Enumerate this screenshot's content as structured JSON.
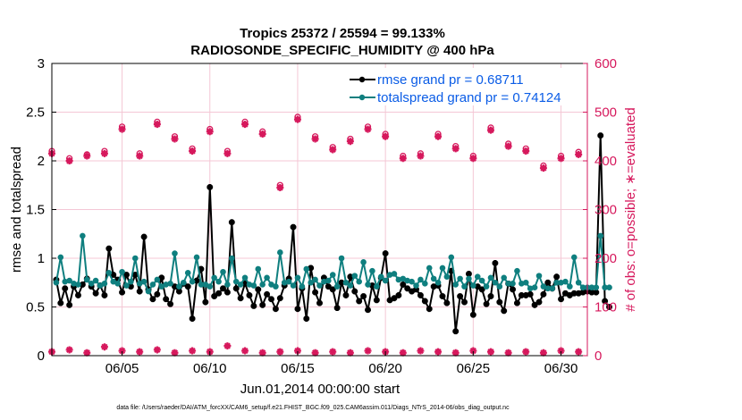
{
  "chart_data": {
    "type": "line",
    "title_line1": "Tropics 25372 / 25594 = 99.133%",
    "title_line2": "RADIOSONDE_SPECIFIC_HUMIDITY @ 400 hPa",
    "xlabel": "Jun.01,2014 00:00:00 start",
    "ylabel_left": "rmse and totalspread",
    "ylabel_right": "# of obs: o=possible; ∗=evaluated",
    "footer": "data file: /Users/raeder/DAI/ATM_forcXX/CAM6_setup/f.e21.FHIST_BGC.f09_025.CAM6assim.011/Diags_NTrS_2014-06/obs_diag_output.nc",
    "x_range": [
      0.0,
      30.5
    ],
    "ylim_left": [
      0,
      3
    ],
    "ylim_right": [
      0,
      600
    ],
    "x_ticks": [
      4,
      9,
      14,
      19,
      24,
      29
    ],
    "x_tick_labels": [
      "06/05",
      "06/10",
      "06/15",
      "06/20",
      "06/25",
      "06/30"
    ],
    "y_ticks_left": [
      0,
      0.5,
      1,
      1.5,
      2,
      2.5,
      3
    ],
    "y_tick_labels_left": [
      "0",
      "0.5",
      "1",
      "1.5",
      "2",
      "2.5",
      "3"
    ],
    "y_ticks_right": [
      0,
      100,
      200,
      300,
      400,
      500,
      600
    ],
    "y_tick_labels_right": [
      "0",
      "100",
      "200",
      "300",
      "400",
      "500",
      "600"
    ],
    "colors": {
      "rmse": "#000000",
      "spread": "#0f7f7f",
      "obs": "#d6185c",
      "legend_text": "#0a5ce6",
      "grid": "#f4c7d5"
    },
    "series": [
      {
        "name": "rmse grand pr = 0.68711",
        "axis": "left",
        "values": [
          0.78,
          0.54,
          0.69,
          0.52,
          0.71,
          0.62,
          0.73,
          0.79,
          0.71,
          0.64,
          0.72,
          0.62,
          1.1,
          0.83,
          0.78,
          0.65,
          0.83,
          0.71,
          0.83,
          0.66,
          1.22,
          0.68,
          0.58,
          0.63,
          0.8,
          0.58,
          0.53,
          0.71,
          0.66,
          0.74,
          0.71,
          0.38,
          0.77,
          0.89,
          0.55,
          1.73,
          0.61,
          0.64,
          0.69,
          0.65,
          1.37,
          0.69,
          0.59,
          0.74,
          0.62,
          0.51,
          0.68,
          0.52,
          0.63,
          0.58,
          0.48,
          0.59,
          0.72,
          0.79,
          1.32,
          0.48,
          0.69,
          0.38,
          0.9,
          0.65,
          0.54,
          0.8,
          0.71,
          0.68,
          0.49,
          0.75,
          0.62,
          0.81,
          0.66,
          0.56,
          0.61,
          0.47,
          0.72,
          0.57,
          0.8,
          1.05,
          0.57,
          0.59,
          0.62,
          0.73,
          0.69,
          0.66,
          0.68,
          0.62,
          0.56,
          0.48,
          0.71,
          0.72,
          0.61,
          0.54,
          0.87,
          0.25,
          0.61,
          0.55,
          0.84,
          0.42,
          0.71,
          0.68,
          0.53,
          0.61,
          0.95,
          0.55,
          0.46,
          0.74,
          0.68,
          0.54,
          0.62,
          0.62,
          0.63,
          0.52,
          0.55,
          0.63,
          0.75,
          0.69,
          0.81,
          0.58,
          0.64,
          0.62,
          0.64,
          0.64,
          0.65,
          0.66,
          0.65,
          0.65,
          2.26,
          0.56,
          0.5
        ]
      },
      {
        "name": "totalspread grand pr = 0.74124",
        "axis": "left",
        "values": [
          0.75,
          1.01,
          0.76,
          0.77,
          0.74,
          0.73,
          1.23,
          0.78,
          0.74,
          0.77,
          0.72,
          0.74,
          0.85,
          0.76,
          0.74,
          0.86,
          0.72,
          0.76,
          1.0,
          0.74,
          0.76,
          0.66,
          0.73,
          0.78,
          0.71,
          0.73,
          0.74,
          1.05,
          0.71,
          0.75,
          0.85,
          0.76,
          1.01,
          0.73,
          0.73,
          0.71,
          0.8,
          0.76,
          0.86,
          0.73,
          1.0,
          0.76,
          0.73,
          0.8,
          0.73,
          0.72,
          0.89,
          0.73,
          0.8,
          0.73,
          0.71,
          1.06,
          0.75,
          0.76,
          0.72,
          0.8,
          0.71,
          0.89,
          0.75,
          0.78,
          0.72,
          0.76,
          0.77,
          0.83,
          0.71,
          1.0,
          0.75,
          0.72,
          0.82,
          0.76,
          0.96,
          0.73,
          0.87,
          0.71,
          0.81,
          0.77,
          0.83,
          0.84,
          0.78,
          0.79,
          0.77,
          0.76,
          0.72,
          0.78,
          0.74,
          0.9,
          0.79,
          0.75,
          0.9,
          0.81,
          1.01,
          0.73,
          0.79,
          0.71,
          0.79,
          0.72,
          0.81,
          0.77,
          0.71,
          0.8,
          0.75,
          0.71,
          0.8,
          0.74,
          0.74,
          0.87,
          0.74,
          0.75,
          0.69,
          0.7,
          0.82,
          0.71,
          0.69,
          0.69,
          0.75,
          0.75,
          0.76,
          0.71,
          1.01,
          0.75,
          0.7,
          0.7,
          0.7,
          0.7,
          1.23,
          0.7,
          0.7
        ]
      },
      {
        "name": "# obs possible",
        "axis": "right",
        "x": [
          0,
          1,
          2,
          3,
          4,
          5,
          6,
          7,
          8,
          9,
          10,
          11,
          12,
          13,
          14,
          15,
          16,
          17,
          18,
          19,
          20,
          21,
          22,
          23,
          24,
          25,
          26,
          27,
          28,
          29,
          30
        ],
        "values": [
          420,
          405,
          413,
          420,
          470,
          415,
          480,
          450,
          425,
          465,
          420,
          480,
          460,
          350,
          490,
          450,
          428,
          445,
          470,
          455,
          410,
          415,
          455,
          430,
          410,
          468,
          435,
          425,
          390,
          410,
          418
        ]
      },
      {
        "name": "# obs evaluated",
        "axis": "right",
        "x": [
          0,
          1,
          2,
          3,
          4,
          5,
          6,
          7,
          8,
          9,
          10,
          11,
          12,
          13,
          14,
          15,
          16,
          17,
          18,
          19,
          20,
          21,
          22,
          23,
          24,
          25,
          26,
          27,
          28,
          29,
          30
        ],
        "values": [
          415,
          400,
          410,
          415,
          465,
          410,
          475,
          445,
          420,
          460,
          415,
          475,
          455,
          345,
          485,
          445,
          423,
          440,
          465,
          450,
          405,
          410,
          450,
          425,
          405,
          463,
          430,
          420,
          385,
          405,
          413
        ]
      },
      {
        "name": "# obs near zero",
        "axis": "right",
        "x": [
          0,
          1,
          2,
          3,
          4,
          5,
          6,
          7,
          8,
          9,
          10,
          11,
          12,
          13,
          14,
          15,
          16,
          17,
          18,
          19,
          20,
          21,
          22,
          23,
          24,
          25,
          26,
          27,
          28,
          29,
          30
        ],
        "values": [
          8,
          12,
          6,
          18,
          10,
          8,
          12,
          6,
          10,
          8,
          20,
          10,
          6,
          8,
          10,
          6,
          8,
          6,
          10,
          8,
          6,
          10,
          8,
          6,
          10,
          8,
          6,
          8,
          6,
          10,
          8
        ]
      }
    ]
  }
}
